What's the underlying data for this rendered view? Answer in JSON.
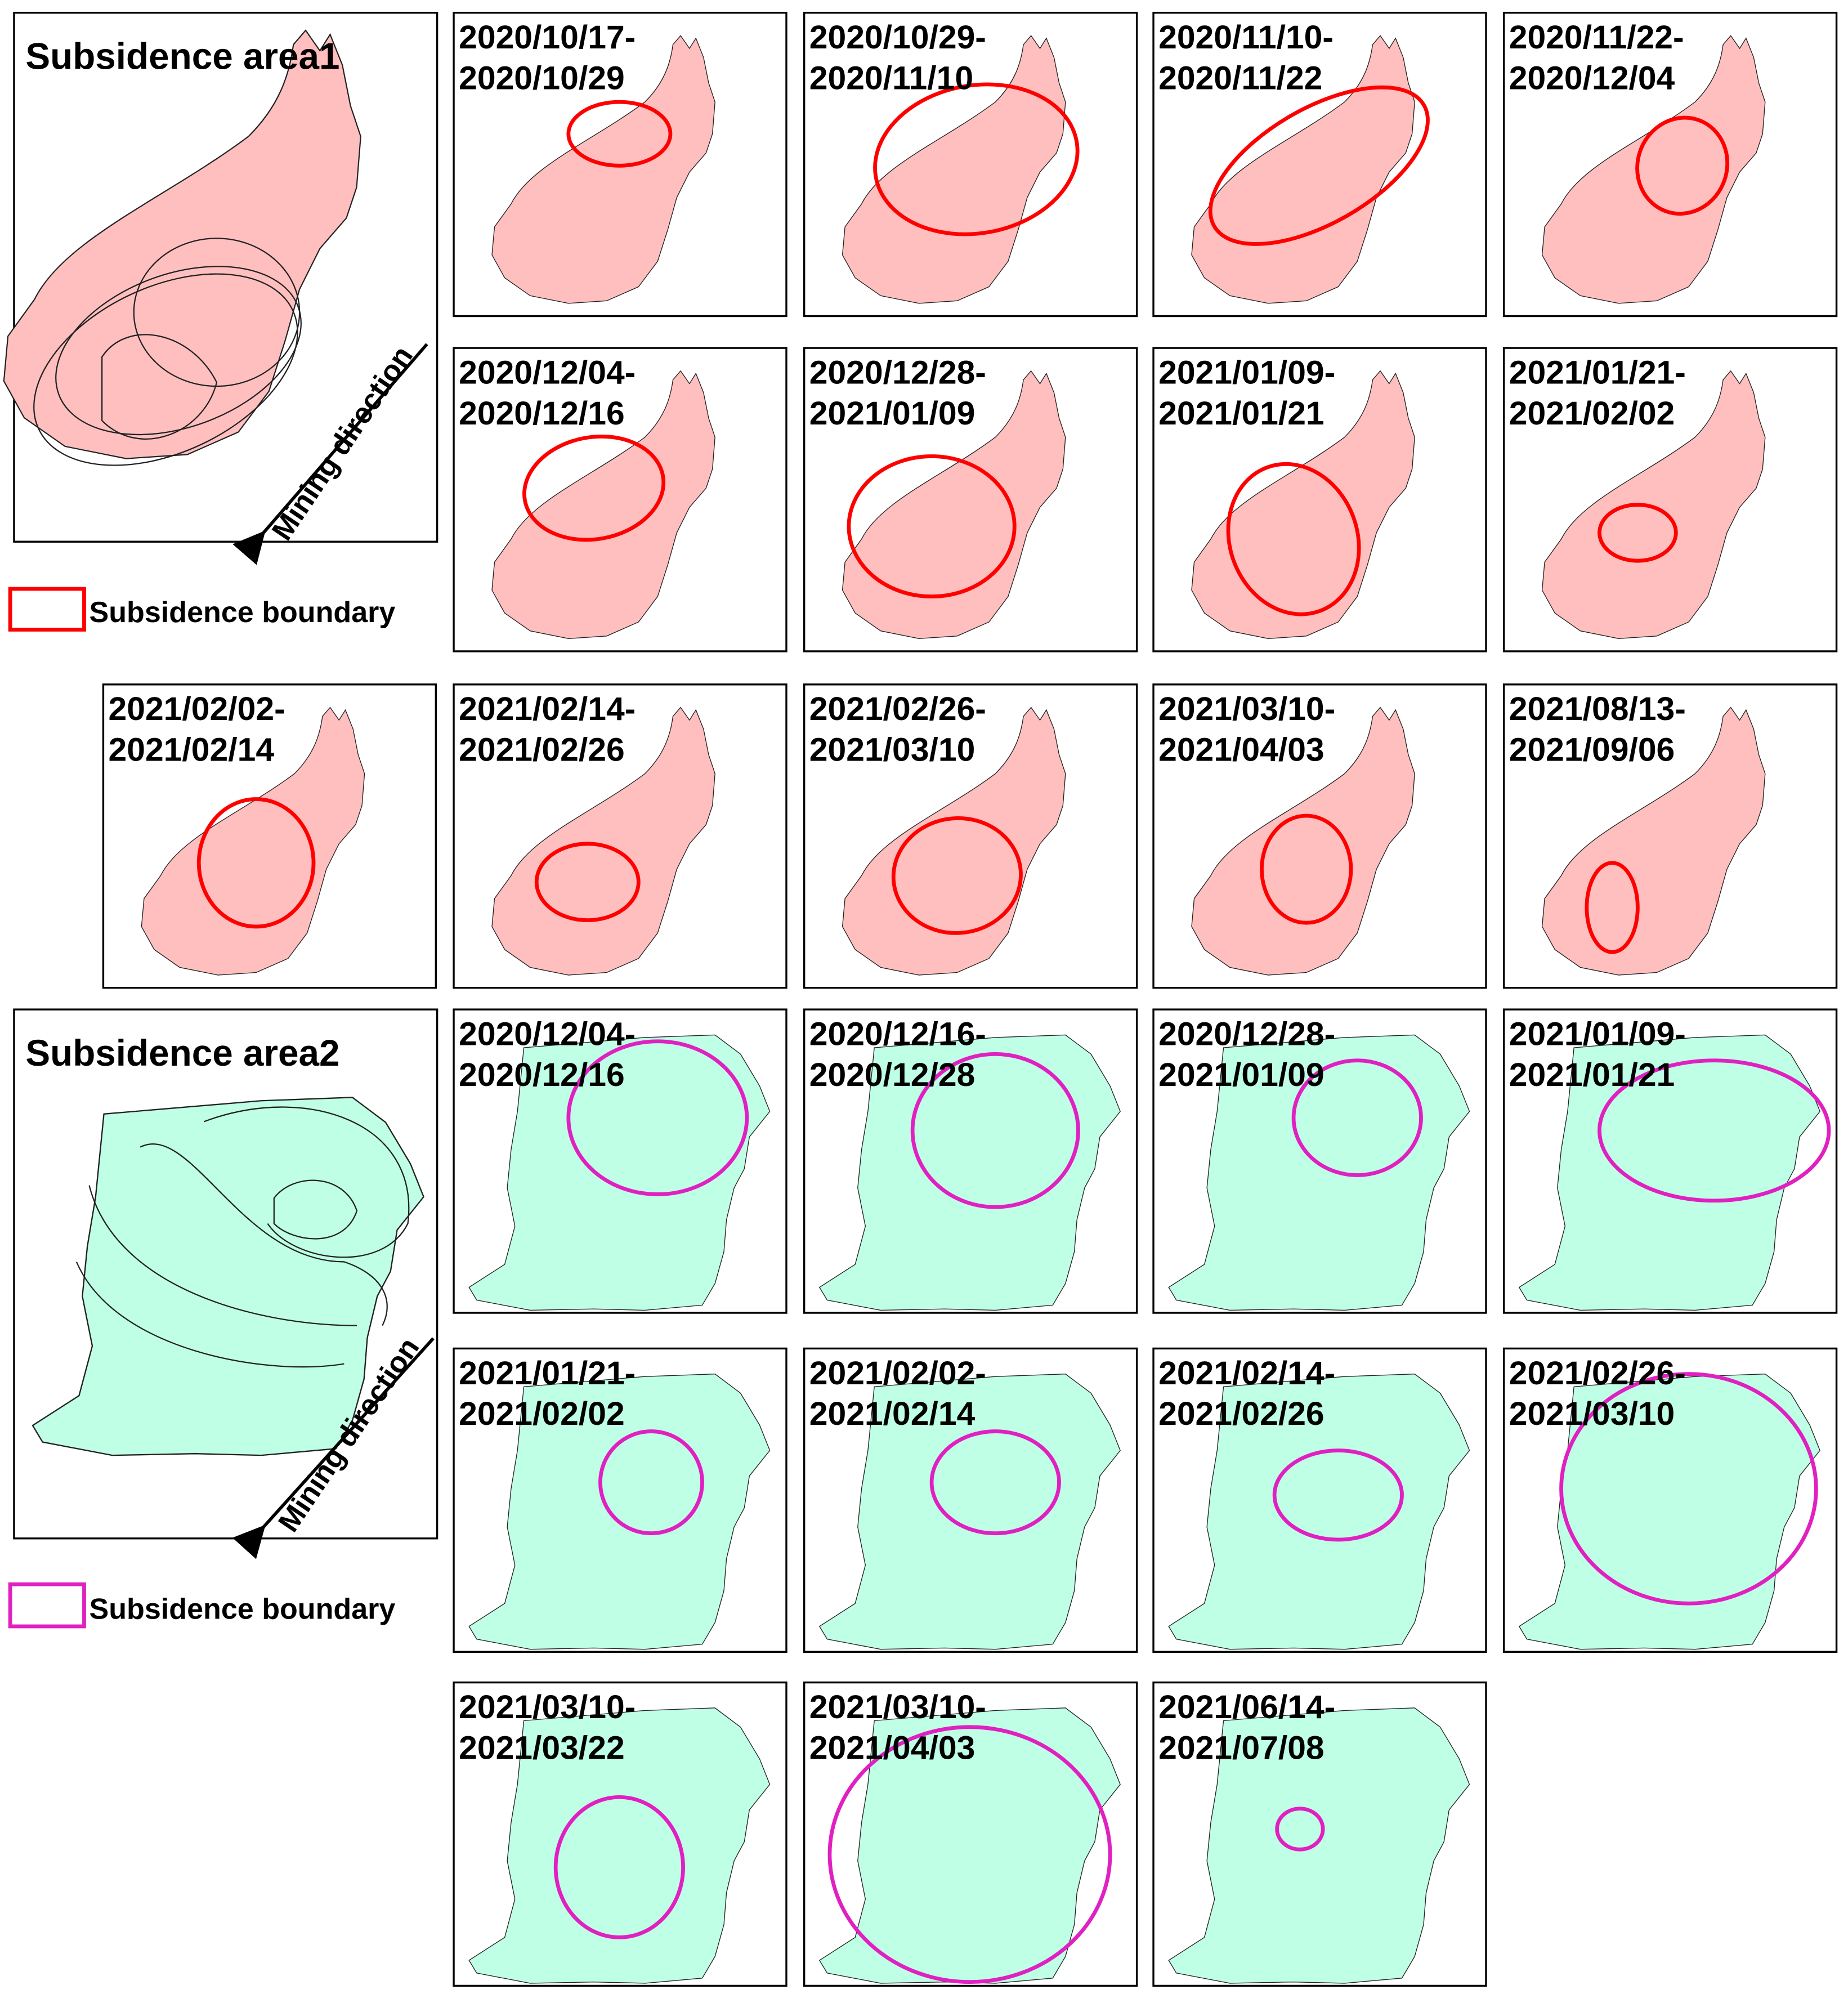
{
  "area1": {
    "title": "Subsidence area1",
    "direction": "Mining direction",
    "legend": "Subsidence boundary",
    "panels": [
      [
        "2020/10/17-",
        "2020/10/29"
      ],
      [
        "2020/10/29-",
        "2020/11/10"
      ],
      [
        "2020/11/10-",
        "2020/11/22"
      ],
      [
        "2020/11/22-",
        "2020/12/04"
      ],
      [
        "2020/12/04-",
        "2020/12/16"
      ],
      [
        "2020/12/28-",
        "2021/01/09"
      ],
      [
        "2021/01/09-",
        "2021/01/21"
      ],
      [
        "2021/01/21-",
        "2021/02/02"
      ],
      [
        "2021/02/02-",
        "2021/02/14"
      ],
      [
        "2021/02/14-",
        "2021/02/26"
      ],
      [
        "2021/02/26-",
        "2021/03/10"
      ],
      [
        "2021/03/10-",
        "2021/04/03"
      ],
      [
        "2021/08/13-",
        "2021/09/06"
      ]
    ]
  },
  "area2": {
    "title": "Subsidence area2",
    "direction": "Mining direction",
    "legend": "Subsidence boundary",
    "panels": [
      [
        "2020/12/04-",
        "2020/12/16"
      ],
      [
        "2020/12/16-",
        "2020/12/28"
      ],
      [
        "2020/12/28-",
        "2021/01/09"
      ],
      [
        "2021/01/09-",
        "2021/01/21"
      ],
      [
        "2021/01/21-",
        "2021/02/02"
      ],
      [
        "2021/02/02-",
        "2021/02/14"
      ],
      [
        "2021/02/14-",
        "2021/02/26"
      ],
      [
        "2021/02/26-",
        "2021/03/10"
      ],
      [
        "2021/03/10-",
        "2021/03/22"
      ],
      [
        "2021/03/10-",
        "2021/04/03"
      ],
      [
        "2021/06/14-",
        "2021/07/08"
      ]
    ]
  }
}
